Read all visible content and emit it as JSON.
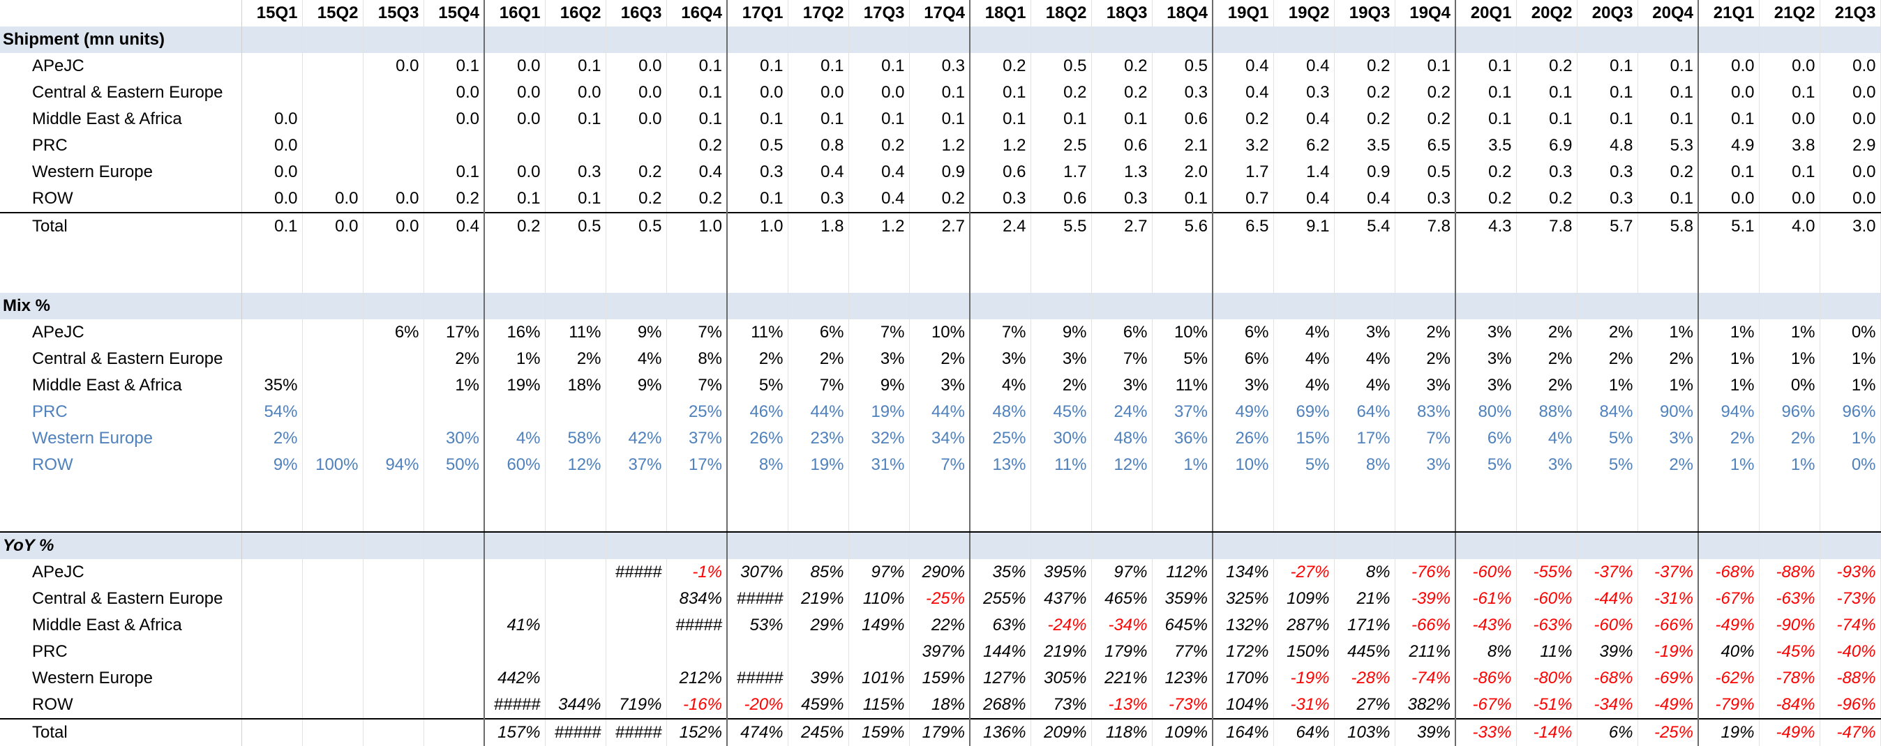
{
  "quarters": [
    "15Q1",
    "15Q2",
    "15Q3",
    "15Q4",
    "16Q1",
    "16Q2",
    "16Q3",
    "16Q4",
    "17Q1",
    "17Q2",
    "17Q3",
    "17Q4",
    "18Q1",
    "18Q2",
    "18Q3",
    "18Q4",
    "19Q1",
    "19Q2",
    "19Q3",
    "19Q4",
    "20Q1",
    "20Q2",
    "20Q3",
    "20Q4",
    "21Q1",
    "21Q2",
    "21Q3"
  ],
  "sections": [
    {
      "title": "Shipment (mn units)",
      "italic": false,
      "rows": [
        {
          "label": "APeJC",
          "values": [
            "",
            "",
            "0.0",
            "0.1",
            "0.0",
            "0.1",
            "0.0",
            "0.1",
            "0.1",
            "0.1",
            "0.1",
            "0.3",
            "0.2",
            "0.5",
            "0.2",
            "0.5",
            "0.4",
            "0.4",
            "0.2",
            "0.1",
            "0.1",
            "0.2",
            "0.1",
            "0.1",
            "0.0",
            "0.0",
            "0.0"
          ]
        },
        {
          "label": "Central & Eastern Europe",
          "values": [
            "",
            "",
            "",
            "0.0",
            "0.0",
            "0.0",
            "0.0",
            "0.1",
            "0.0",
            "0.0",
            "0.0",
            "0.1",
            "0.1",
            "0.2",
            "0.2",
            "0.3",
            "0.4",
            "0.3",
            "0.2",
            "0.2",
            "0.1",
            "0.1",
            "0.1",
            "0.1",
            "0.0",
            "0.1",
            "0.0"
          ]
        },
        {
          "label": "Middle East & Africa",
          "values": [
            "0.0",
            "",
            "",
            "0.0",
            "0.0",
            "0.1",
            "0.0",
            "0.1",
            "0.1",
            "0.1",
            "0.1",
            "0.1",
            "0.1",
            "0.1",
            "0.1",
            "0.6",
            "0.2",
            "0.4",
            "0.2",
            "0.2",
            "0.1",
            "0.1",
            "0.1",
            "0.1",
            "0.1",
            "0.0",
            "0.0"
          ]
        },
        {
          "label": "PRC",
          "values": [
            "0.0",
            "",
            "",
            "",
            "",
            "",
            "",
            "0.2",
            "0.5",
            "0.8",
            "0.2",
            "1.2",
            "1.2",
            "2.5",
            "0.6",
            "2.1",
            "3.2",
            "6.2",
            "3.5",
            "6.5",
            "3.5",
            "6.9",
            "4.8",
            "5.3",
            "4.9",
            "3.8",
            "2.9"
          ]
        },
        {
          "label": "Western Europe",
          "values": [
            "0.0",
            "",
            "",
            "0.1",
            "0.0",
            "0.3",
            "0.2",
            "0.4",
            "0.3",
            "0.4",
            "0.4",
            "0.9",
            "0.6",
            "1.7",
            "1.3",
            "2.0",
            "1.7",
            "1.4",
            "0.9",
            "0.5",
            "0.2",
            "0.3",
            "0.3",
            "0.2",
            "0.1",
            "0.1",
            "0.0"
          ]
        },
        {
          "label": "ROW",
          "values": [
            "0.0",
            "0.0",
            "0.0",
            "0.2",
            "0.1",
            "0.1",
            "0.2",
            "0.2",
            "0.1",
            "0.3",
            "0.4",
            "0.2",
            "0.3",
            "0.6",
            "0.3",
            "0.1",
            "0.7",
            "0.4",
            "0.4",
            "0.3",
            "0.2",
            "0.2",
            "0.3",
            "0.1",
            "0.0",
            "0.0",
            "0.0"
          ]
        }
      ],
      "total": {
        "label": "Total",
        "values": [
          "0.1",
          "0.0",
          "0.0",
          "0.4",
          "0.2",
          "0.5",
          "0.5",
          "1.0",
          "1.0",
          "1.8",
          "1.2",
          "2.7",
          "2.4",
          "5.5",
          "2.7",
          "5.6",
          "6.5",
          "9.1",
          "5.4",
          "7.8",
          "4.3",
          "7.8",
          "5.7",
          "5.8",
          "5.1",
          "4.0",
          "3.0"
        ]
      }
    },
    {
      "title": "Mix %",
      "italic": false,
      "rows": [
        {
          "label": "APeJC",
          "values": [
            "",
            "",
            "6%",
            "17%",
            "16%",
            "11%",
            "9%",
            "7%",
            "11%",
            "6%",
            "7%",
            "10%",
            "7%",
            "9%",
            "6%",
            "10%",
            "6%",
            "4%",
            "3%",
            "2%",
            "3%",
            "2%",
            "2%",
            "1%",
            "1%",
            "1%",
            "0%"
          ]
        },
        {
          "label": "Central & Eastern Europe",
          "values": [
            "",
            "",
            "",
            "2%",
            "1%",
            "2%",
            "4%",
            "8%",
            "2%",
            "2%",
            "3%",
            "2%",
            "3%",
            "3%",
            "7%",
            "5%",
            "6%",
            "4%",
            "4%",
            "2%",
            "3%",
            "2%",
            "2%",
            "2%",
            "1%",
            "1%",
            "1%"
          ]
        },
        {
          "label": "Middle East & Africa",
          "values": [
            "35%",
            "",
            "",
            "1%",
            "19%",
            "18%",
            "9%",
            "7%",
            "5%",
            "7%",
            "9%",
            "3%",
            "4%",
            "2%",
            "3%",
            "11%",
            "3%",
            "4%",
            "4%",
            "3%",
            "3%",
            "2%",
            "1%",
            "1%",
            "1%",
            "0%",
            "1%"
          ]
        },
        {
          "label": "PRC",
          "blue": true,
          "values": [
            "54%",
            "",
            "",
            "",
            "",
            "",
            "",
            "25%",
            "46%",
            "44%",
            "19%",
            "44%",
            "48%",
            "45%",
            "24%",
            "37%",
            "49%",
            "69%",
            "64%",
            "83%",
            "80%",
            "88%",
            "84%",
            "90%",
            "94%",
            "96%",
            "96%"
          ]
        },
        {
          "label": "Western Europe",
          "blue": true,
          "values": [
            "2%",
            "",
            "",
            "30%",
            "4%",
            "58%",
            "42%",
            "37%",
            "26%",
            "23%",
            "32%",
            "34%",
            "25%",
            "30%",
            "48%",
            "36%",
            "26%",
            "15%",
            "17%",
            "7%",
            "6%",
            "4%",
            "5%",
            "3%",
            "2%",
            "2%",
            "1%"
          ]
        },
        {
          "label": "ROW",
          "blue": true,
          "values": [
            "9%",
            "100%",
            "94%",
            "50%",
            "60%",
            "12%",
            "37%",
            "17%",
            "8%",
            "19%",
            "31%",
            "7%",
            "13%",
            "11%",
            "12%",
            "1%",
            "10%",
            "5%",
            "8%",
            "3%",
            "5%",
            "3%",
            "5%",
            "2%",
            "1%",
            "1%",
            "0%"
          ]
        }
      ]
    },
    {
      "title": "YoY %",
      "italic": true,
      "rows": [
        {
          "label": "APeJC",
          "values": [
            "",
            "",
            "",
            "",
            "",
            "",
            "#####",
            "-1%",
            "307%",
            "85%",
            "97%",
            "290%",
            "35%",
            "395%",
            "97%",
            "112%",
            "134%",
            "-27%",
            "8%",
            "-76%",
            "-60%",
            "-55%",
            "-37%",
            "-37%",
            "-68%",
            "-88%",
            "-93%"
          ]
        },
        {
          "label": "Central & Eastern Europe",
          "values": [
            "",
            "",
            "",
            "",
            "",
            "",
            "",
            "834%",
            "#####",
            "219%",
            "110%",
            "-25%",
            "255%",
            "437%",
            "465%",
            "359%",
            "325%",
            "109%",
            "21%",
            "-39%",
            "-61%",
            "-60%",
            "-44%",
            "-31%",
            "-67%",
            "-63%",
            "-73%"
          ]
        },
        {
          "label": "Middle East & Africa",
          "values": [
            "",
            "",
            "",
            "",
            "41%",
            "",
            "",
            "#####",
            "53%",
            "29%",
            "149%",
            "22%",
            "63%",
            "-24%",
            "-34%",
            "645%",
            "132%",
            "287%",
            "171%",
            "-66%",
            "-43%",
            "-63%",
            "-60%",
            "-66%",
            "-49%",
            "-90%",
            "-74%"
          ]
        },
        {
          "label": "PRC",
          "values": [
            "",
            "",
            "",
            "",
            "",
            "",
            "",
            "",
            "",
            "",
            "",
            "397%",
            "144%",
            "219%",
            "179%",
            "77%",
            "172%",
            "150%",
            "445%",
            "211%",
            "8%",
            "11%",
            "39%",
            "-19%",
            "40%",
            "-45%",
            "-40%"
          ]
        },
        {
          "label": "Western Europe",
          "values": [
            "",
            "",
            "",
            "",
            "442%",
            "",
            "",
            "212%",
            "#####",
            "39%",
            "101%",
            "159%",
            "127%",
            "305%",
            "221%",
            "123%",
            "170%",
            "-19%",
            "-28%",
            "-74%",
            "-86%",
            "-80%",
            "-68%",
            "-69%",
            "-62%",
            "-78%",
            "-88%"
          ]
        },
        {
          "label": "ROW",
          "values": [
            "",
            "",
            "",
            "",
            "#####",
            "344%",
            "719%",
            "-16%",
            "-20%",
            "459%",
            "115%",
            "18%",
            "268%",
            "73%",
            "-13%",
            "-73%",
            "104%",
            "-31%",
            "27%",
            "382%",
            "-67%",
            "-51%",
            "-34%",
            "-49%",
            "-79%",
            "-84%",
            "-96%"
          ]
        }
      ],
      "total": {
        "label": "Total",
        "values": [
          "",
          "",
          "",
          "",
          "157%",
          "#####",
          "#####",
          "152%",
          "474%",
          "245%",
          "159%",
          "179%",
          "136%",
          "209%",
          "118%",
          "109%",
          "164%",
          "64%",
          "103%",
          "39%",
          "-33%",
          "-14%",
          "6%",
          "-25%",
          "19%",
          "-49%",
          "-47%"
        ]
      }
    }
  ]
}
